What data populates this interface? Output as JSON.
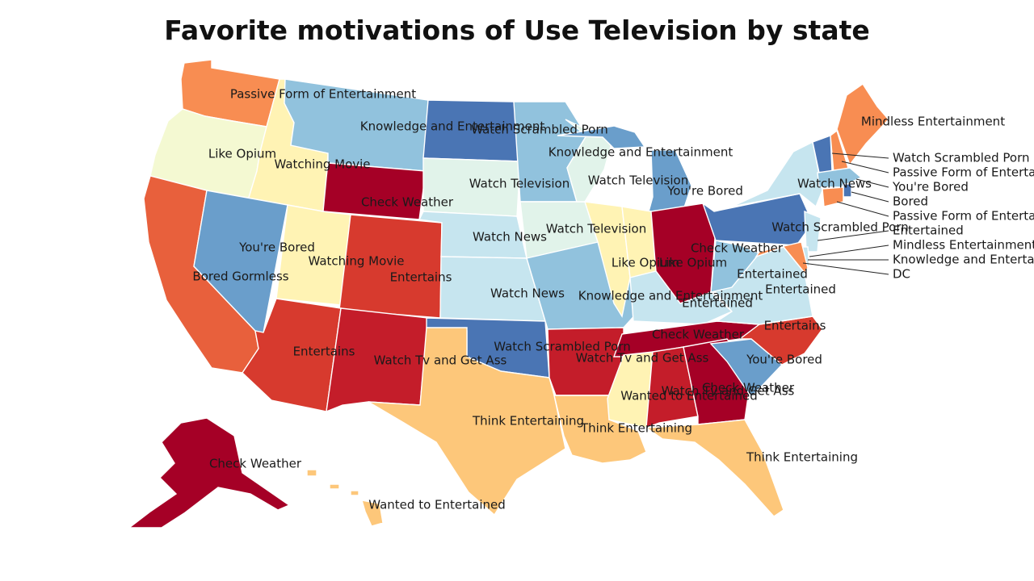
{
  "title": "Favorite motivations of Use Television by state",
  "palette": {
    "dark_red": "#a50026",
    "red": "#c41d2a",
    "red_orange": "#d73a2e",
    "orange_red": "#e8603c",
    "orange": "#f88d52",
    "light_orange": "#fdc77a",
    "pale_yellow": "#fff3b4",
    "pale_green": "#f4f9d2",
    "pale_mint": "#e1f3ea",
    "pale_blue": "#c6e5ef",
    "light_blue": "#91c2dd",
    "mid_blue": "#6a9ecb",
    "blue": "#4a75b4"
  },
  "states": [
    {
      "id": "WA",
      "value": "Passive Form of Entertainment",
      "color": "orange"
    },
    {
      "id": "OR",
      "value": "Like Opium",
      "color": "pale_green"
    },
    {
      "id": "ID",
      "value": "Watching Movie",
      "color": "pale_yellow"
    },
    {
      "id": "MT",
      "value": "Knowledge and Entertainment",
      "color": "light_blue"
    },
    {
      "id": "WY",
      "value": "Check Weather",
      "color": "dark_red"
    },
    {
      "id": "CA",
      "value": "Bored Gormless",
      "color": "orange_red"
    },
    {
      "id": "NV",
      "value": "You're Bored",
      "color": "mid_blue"
    },
    {
      "id": "UT",
      "value": "Watching Movie",
      "color": "pale_yellow"
    },
    {
      "id": "CO",
      "value": "Entertains",
      "color": "red_orange"
    },
    {
      "id": "AZ",
      "value": "Entertains",
      "color": "red_orange"
    },
    {
      "id": "NM",
      "value": "Watch Tv and Get Ass",
      "color": "red"
    },
    {
      "id": "ND",
      "value": "Watch Scrambled Porn",
      "color": "blue"
    },
    {
      "id": "SD",
      "value": "Watch Television",
      "color": "pale_mint"
    },
    {
      "id": "NE",
      "value": "Watch News",
      "color": "pale_blue"
    },
    {
      "id": "KS",
      "value": "Watch News",
      "color": "pale_blue"
    },
    {
      "id": "OK",
      "value": "Watch Scrambled Porn",
      "color": "blue"
    },
    {
      "id": "TX",
      "value": "Think Entertaining",
      "color": "light_orange"
    },
    {
      "id": "MN",
      "value": "Knowledge and Entertainment",
      "color": "light_blue"
    },
    {
      "id": "IA",
      "value": "Watch Television",
      "color": "pale_mint"
    },
    {
      "id": "MO",
      "value": "Knowledge and Entertainment",
      "color": "light_blue"
    },
    {
      "id": "AR",
      "value": "Watch Tv and Get Ass",
      "color": "red"
    },
    {
      "id": "LA",
      "value": "Think Entertaining",
      "color": "light_orange"
    },
    {
      "id": "WI",
      "value": "Watch Television",
      "color": "pale_mint"
    },
    {
      "id": "IL",
      "value": "Like Opium",
      "color": "pale_yellow"
    },
    {
      "id": "MI",
      "value": "You're Bored",
      "color": "mid_blue"
    },
    {
      "id": "IN",
      "value": "Like Opium",
      "color": "pale_yellow"
    },
    {
      "id": "OH",
      "value": "Check Weather",
      "color": "dark_red"
    },
    {
      "id": "KY",
      "value": "Entertained",
      "color": "pale_blue"
    },
    {
      "id": "TN",
      "value": "Check Weather",
      "color": "dark_red"
    },
    {
      "id": "MS",
      "value": "Wanted to Entertained",
      "color": "pale_yellow"
    },
    {
      "id": "AL",
      "value": "Watch Tv and Get Ass",
      "color": "red"
    },
    {
      "id": "GA",
      "value": "Check Weather",
      "color": "dark_red"
    },
    {
      "id": "FL",
      "value": "Think Entertaining",
      "color": "light_orange"
    },
    {
      "id": "SC",
      "value": "You're Bored",
      "color": "mid_blue"
    },
    {
      "id": "NC",
      "value": "Entertains",
      "color": "red_orange"
    },
    {
      "id": "VA",
      "value": "Entertained",
      "color": "pale_blue"
    },
    {
      "id": "WV",
      "value": "Entertained",
      "color": "light_blue"
    },
    {
      "id": "PA",
      "value": "Watch Scrambled Porn",
      "color": "blue"
    },
    {
      "id": "NY",
      "value": "Watch News",
      "color": "pale_blue"
    },
    {
      "id": "NJ",
      "value": "Entertained",
      "color": "pale_blue"
    },
    {
      "id": "DE",
      "value": "Mindless Entertainment",
      "color": "pale_blue"
    },
    {
      "id": "MD",
      "value": "Knowledge and Entertainment",
      "color": "orange"
    },
    {
      "id": "DC",
      "value": "DC",
      "color": "pale_blue"
    },
    {
      "id": "VT",
      "value": "Watch Scrambled Porn",
      "color": "blue"
    },
    {
      "id": "NH",
      "value": "Passive Form of Entertainment",
      "color": "orange"
    },
    {
      "id": "MA",
      "value": "You're Bored",
      "color": "light_blue"
    },
    {
      "id": "RI",
      "value": "Bored",
      "color": "blue"
    },
    {
      "id": "CT",
      "value": "Passive Form of Entertainment",
      "color": "orange"
    },
    {
      "id": "ME",
      "value": "Mindless Entertainment",
      "color": "orange"
    },
    {
      "id": "AK",
      "value": "Check Weather",
      "color": "dark_red"
    },
    {
      "id": "HI",
      "value": "Wanted to Entertained",
      "color": "light_orange"
    }
  ],
  "labels": [
    {
      "text": "Passive Form of Entertainment"
    },
    {
      "text": "Knowledge and Entertainment"
    },
    {
      "text": "Watch Scrambled Porn"
    },
    {
      "text": "Knowledge and Entertainment"
    },
    {
      "text": "Mindless Entertainment"
    },
    {
      "text": "Like Opium"
    },
    {
      "text": "Watching Movie"
    },
    {
      "text": "Check Weather"
    },
    {
      "text": "Watch Television"
    },
    {
      "text": "Watch Television"
    },
    {
      "text": "You're Bored"
    },
    {
      "text": "Watch News"
    },
    {
      "text": "You're Bored"
    },
    {
      "text": "Watch News"
    },
    {
      "text": "Watch Television"
    },
    {
      "text": "Watch Scrambled Porn"
    },
    {
      "text": "Watching Movie"
    },
    {
      "text": "Check Weather"
    },
    {
      "text": "Bored Gormless"
    },
    {
      "text": "Entertains"
    },
    {
      "text": "Like Opium"
    },
    {
      "text": "Like Opium"
    },
    {
      "text": "Entertained"
    },
    {
      "text": "Entertained"
    },
    {
      "text": "Watch News"
    },
    {
      "text": "Knowledge and Entertainment"
    },
    {
      "text": "Entertained"
    },
    {
      "text": "Entertains"
    },
    {
      "text": "Check Weather"
    },
    {
      "text": "Entertains"
    },
    {
      "text": "Watch Scrambled Porn"
    },
    {
      "text": "Watch Tv and Get Ass"
    },
    {
      "text": "Watch Tv and Get Ass"
    },
    {
      "text": "You're Bored"
    },
    {
      "text": "Check Weather"
    },
    {
      "text": "Watch Tv and Get Ass"
    },
    {
      "text": "Wanted to Entertained"
    },
    {
      "text": "Think Entertaining"
    },
    {
      "text": "Think Entertaining"
    },
    {
      "text": "Think Entertaining"
    },
    {
      "text": "Check Weather"
    },
    {
      "text": "Wanted to Entertained"
    }
  ],
  "callouts": [
    {
      "text": "Watch Scrambled Porn"
    },
    {
      "text": "Passive Form of Entertainment"
    },
    {
      "text": "You're Bored"
    },
    {
      "text": "Bored"
    },
    {
      "text": "Passive Form of Entertainment"
    },
    {
      "text": "Entertained"
    },
    {
      "text": "Mindless Entertainment"
    },
    {
      "text": "Knowledge and Entertainment"
    },
    {
      "text": "DC"
    }
  ]
}
